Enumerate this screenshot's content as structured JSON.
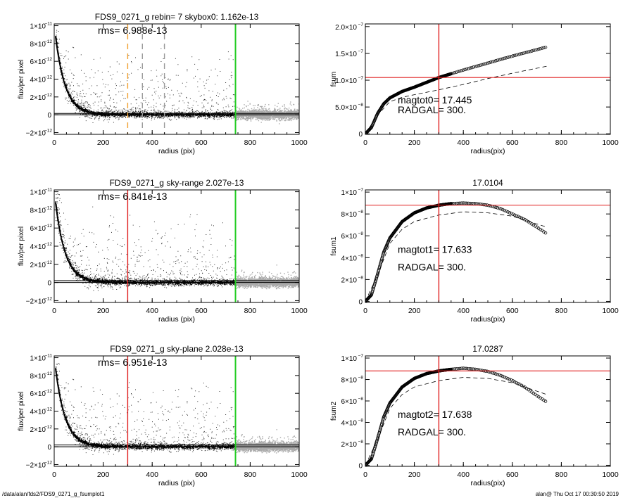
{
  "footer": {
    "path": "/data/alan/fds2/FDS9_0271_g_fsumplot1",
    "stamp": "alan@  Thu Oct 17 00:30:50 2019"
  },
  "chart_data": [
    {
      "type": "scatter",
      "title": "FDS9_0271_g rebin= 7    skybox0:  1.162e-13",
      "xlabel": "radius (pix)",
      "ylabel": "flux/per pixel",
      "xlim": [
        0,
        1000
      ],
      "ylim": [
        -2.2e-12,
        1.02e-11
      ],
      "x_ticks": [
        0,
        200,
        400,
        600,
        800,
        1000
      ],
      "y_ticks": [
        {
          "v": -2e-12,
          "m": "−2×10",
          "e": "−12"
        },
        {
          "v": 0,
          "m": "0",
          "e": ""
        },
        {
          "v": 2e-12,
          "m": "2×10",
          "e": "−12"
        },
        {
          "v": 4e-12,
          "m": "4×10",
          "e": "−12"
        },
        {
          "v": 6e-12,
          "m": "6×10",
          "e": "−12"
        },
        {
          "v": 8e-12,
          "m": "8×10",
          "e": "−12"
        },
        {
          "v": 1e-11,
          "m": "1×10",
          "e": "−11"
        }
      ],
      "annotations": [
        "rms= 6.988e-13"
      ],
      "vlines": [
        {
          "x": 300,
          "color": "#f0a030",
          "style": "dashed"
        },
        {
          "x": 360,
          "color": "#999999",
          "style": "dashed"
        },
        {
          "x": 450,
          "color": "#999999",
          "style": "dashed"
        },
        {
          "x": 740,
          "color": "#22cc22",
          "style": "solid"
        }
      ],
      "hlines": [
        {
          "y": 1.5e-13,
          "color": "#000000",
          "style": "solid"
        },
        {
          "y": 0,
          "color": "#000000",
          "style": "solid"
        }
      ],
      "profile": {
        "amplitude": 1e-11,
        "scale_pix": 40,
        "x_start": 5,
        "x_end": 740
      },
      "colors": {
        "points": "#000000",
        "sky": "#aaaaaa"
      }
    },
    {
      "type": "line",
      "title": "",
      "xlabel": "radius(pix)",
      "ylabel": "fsum",
      "xlim": [
        0,
        1000
      ],
      "ylim": [
        -1e-09,
        2.05e-07
      ],
      "x_ticks": [
        0,
        200,
        400,
        600,
        800,
        1000
      ],
      "y_ticks": [
        {
          "v": 0,
          "m": "0",
          "e": ""
        },
        {
          "v": 5e-08,
          "m": "5.0×10",
          "e": "−8"
        },
        {
          "v": 1e-07,
          "m": "1.0×10",
          "e": "−7"
        },
        {
          "v": 1.5e-07,
          "m": "1.5×10",
          "e": "−7"
        },
        {
          "v": 2e-07,
          "m": "2.0×10",
          "e": "−7"
        }
      ],
      "annotations": [
        "magtot0=  17.445",
        "RADGAL=    300."
      ],
      "vlines": [
        {
          "x": 300,
          "color": "#e02020",
          "style": "solid"
        }
      ],
      "hlines": [
        {
          "y": 1.05e-07,
          "color": "#e02020",
          "style": "solid"
        }
      ],
      "curve_points": [
        [
          0,
          0
        ],
        [
          25,
          1.2e-08
        ],
        [
          50,
          3.8e-08
        ],
        [
          75,
          5.6e-08
        ],
        [
          100,
          6.7e-08
        ],
        [
          150,
          7.9e-08
        ],
        [
          200,
          8.7e-08
        ],
        [
          250,
          9.6e-08
        ],
        [
          300,
          1.05e-07
        ],
        [
          400,
          1.19e-07
        ],
        [
          500,
          1.32e-07
        ],
        [
          600,
          1.45e-07
        ],
        [
          700,
          1.57e-07
        ],
        [
          740,
          1.62e-07
        ]
      ],
      "dashed_points": [
        [
          0,
          0
        ],
        [
          50,
          3.5e-08
        ],
        [
          100,
          6e-08
        ],
        [
          150,
          6.8e-08
        ],
        [
          200,
          7.3e-08
        ],
        [
          300,
          8.2e-08
        ],
        [
          400,
          9.2e-08
        ],
        [
          500,
          1.03e-07
        ],
        [
          600,
          1.13e-07
        ],
        [
          740,
          1.26e-07
        ]
      ]
    },
    {
      "type": "scatter",
      "title": "FDS9_0271_g sky-range  2.027e-13",
      "xlabel": "radius (pix)",
      "ylabel": "flux/per pixel",
      "xlim": [
        0,
        1000
      ],
      "ylim": [
        -2.2e-12,
        1.02e-11
      ],
      "x_ticks": [
        0,
        200,
        400,
        600,
        800,
        1000
      ],
      "y_ticks": [
        {
          "v": -2e-12,
          "m": "−2×10",
          "e": "−12"
        },
        {
          "v": 0,
          "m": "0",
          "e": ""
        },
        {
          "v": 2e-12,
          "m": "2×10",
          "e": "−12"
        },
        {
          "v": 4e-12,
          "m": "4×10",
          "e": "−12"
        },
        {
          "v": 6e-12,
          "m": "6×10",
          "e": "−12"
        },
        {
          "v": 8e-12,
          "m": "8×10",
          "e": "−12"
        },
        {
          "v": 1e-11,
          "m": "1×10",
          "e": "−11"
        }
      ],
      "annotations": [
        "rms= 6.841e-13"
      ],
      "vlines": [
        {
          "x": 300,
          "color": "#e02020",
          "style": "solid"
        },
        {
          "x": 740,
          "color": "#22cc22",
          "style": "solid"
        }
      ],
      "hlines": [
        {
          "y": 2e-13,
          "color": "#000000",
          "style": "solid"
        },
        {
          "y": 0,
          "color": "#000000",
          "style": "solid"
        }
      ],
      "profile": {
        "amplitude": 1e-11,
        "scale_pix": 40,
        "x_start": 5,
        "x_end": 740
      },
      "colors": {
        "points": "#000000",
        "sky": "#aaaaaa"
      }
    },
    {
      "type": "line",
      "title": "17.0104",
      "xlabel": "radius(pix)",
      "ylabel": "fsum1",
      "xlim": [
        0,
        1000
      ],
      "ylim": [
        -1e-09,
        1.02e-07
      ],
      "x_ticks": [
        0,
        200,
        400,
        600,
        800,
        1000
      ],
      "y_ticks": [
        {
          "v": 0,
          "m": "0",
          "e": ""
        },
        {
          "v": 2e-08,
          "m": "2×10",
          "e": "−8"
        },
        {
          "v": 4e-08,
          "m": "4×10",
          "e": "−8"
        },
        {
          "v": 6e-08,
          "m": "6×10",
          "e": "−8"
        },
        {
          "v": 8e-08,
          "m": "8×10",
          "e": "−8"
        },
        {
          "v": 1e-07,
          "m": "1×10",
          "e": "−7"
        }
      ],
      "annotations": [
        "magtot1=  17.633",
        "RADGAL=    300."
      ],
      "vlines": [
        {
          "x": 300,
          "color": "#e02020",
          "style": "solid"
        }
      ],
      "hlines": [
        {
          "y": 8.8e-08,
          "color": "#e02020",
          "style": "solid"
        }
      ],
      "curve_points": [
        [
          0,
          0
        ],
        [
          25,
          6e-09
        ],
        [
          50,
          2.5e-08
        ],
        [
          75,
          4.5e-08
        ],
        [
          100,
          5.8e-08
        ],
        [
          150,
          7.3e-08
        ],
        [
          200,
          8.1e-08
        ],
        [
          250,
          8.55e-08
        ],
        [
          300,
          8.8e-08
        ],
        [
          350,
          8.95e-08
        ],
        [
          400,
          9e-08
        ],
        [
          450,
          8.95e-08
        ],
        [
          500,
          8.8e-08
        ],
        [
          550,
          8.5e-08
        ],
        [
          600,
          8e-08
        ],
        [
          650,
          7.5e-08
        ],
        [
          700,
          6.8e-08
        ],
        [
          740,
          6.2e-08
        ]
      ],
      "dashed_points": [
        [
          0,
          0
        ],
        [
          50,
          2.4e-08
        ],
        [
          100,
          5.3e-08
        ],
        [
          150,
          6.6e-08
        ],
        [
          200,
          7.3e-08
        ],
        [
          300,
          7.9e-08
        ],
        [
          400,
          8.2e-08
        ],
        [
          500,
          8.1e-08
        ],
        [
          600,
          7.8e-08
        ],
        [
          740,
          6.8e-08
        ]
      ]
    },
    {
      "type": "scatter",
      "title": "FDS9_0271_g sky-plane  2.028e-13",
      "xlabel": "radius (pix)",
      "ylabel": "flux/per pixel",
      "xlim": [
        0,
        1000
      ],
      "ylim": [
        -2.2e-12,
        1.02e-11
      ],
      "x_ticks": [
        0,
        200,
        400,
        600,
        800,
        1000
      ],
      "y_ticks": [
        {
          "v": -2e-12,
          "m": "−2×10",
          "e": "−12"
        },
        {
          "v": 0,
          "m": "0",
          "e": ""
        },
        {
          "v": 2e-12,
          "m": "2×10",
          "e": "−12"
        },
        {
          "v": 4e-12,
          "m": "4×10",
          "e": "−12"
        },
        {
          "v": 6e-12,
          "m": "6×10",
          "e": "−12"
        },
        {
          "v": 8e-12,
          "m": "8×10",
          "e": "−12"
        },
        {
          "v": 1e-11,
          "m": "1×10",
          "e": "−11"
        }
      ],
      "annotations": [
        "rms= 6.951e-13"
      ],
      "vlines": [
        {
          "x": 300,
          "color": "#e02020",
          "style": "solid"
        },
        {
          "x": 740,
          "color": "#22cc22",
          "style": "solid"
        }
      ],
      "hlines": [
        {
          "y": 2e-13,
          "color": "#000000",
          "style": "solid"
        },
        {
          "y": 0,
          "color": "#000000",
          "style": "solid"
        }
      ],
      "profile": {
        "amplitude": 1e-11,
        "scale_pix": 40,
        "x_start": 5,
        "x_end": 740
      },
      "colors": {
        "points": "#000000",
        "sky": "#aaaaaa"
      }
    },
    {
      "type": "line",
      "title": "17.0287",
      "xlabel": "radius(pix)",
      "ylabel": "fsum2",
      "xlim": [
        0,
        1000
      ],
      "ylim": [
        -1e-09,
        1.02e-07
      ],
      "x_ticks": [
        0,
        200,
        400,
        600,
        800,
        1000
      ],
      "y_ticks": [
        {
          "v": 0,
          "m": "0",
          "e": ""
        },
        {
          "v": 2e-08,
          "m": "2×10",
          "e": "−8"
        },
        {
          "v": 4e-08,
          "m": "4×10",
          "e": "−8"
        },
        {
          "v": 6e-08,
          "m": "6×10",
          "e": "−8"
        },
        {
          "v": 8e-08,
          "m": "8×10",
          "e": "−8"
        },
        {
          "v": 1e-07,
          "m": "1×10",
          "e": "−7"
        }
      ],
      "annotations": [
        "magtot2=  17.638",
        "RADGAL=    300."
      ],
      "vlines": [
        {
          "x": 300,
          "color": "#e02020",
          "style": "solid"
        }
      ],
      "hlines": [
        {
          "y": 8.8e-08,
          "color": "#e02020",
          "style": "solid"
        }
      ],
      "curve_points": [
        [
          0,
          0
        ],
        [
          25,
          6e-09
        ],
        [
          50,
          2.5e-08
        ],
        [
          75,
          4.5e-08
        ],
        [
          100,
          5.8e-08
        ],
        [
          150,
          7.3e-08
        ],
        [
          200,
          8.1e-08
        ],
        [
          250,
          8.55e-08
        ],
        [
          300,
          8.8e-08
        ],
        [
          350,
          8.95e-08
        ],
        [
          400,
          9.05e-08
        ],
        [
          450,
          8.95e-08
        ],
        [
          500,
          8.75e-08
        ],
        [
          550,
          8.4e-08
        ],
        [
          600,
          7.9e-08
        ],
        [
          650,
          7.3e-08
        ],
        [
          700,
          6.5e-08
        ],
        [
          740,
          5.9e-08
        ]
      ],
      "dashed_points": [
        [
          0,
          0
        ],
        [
          50,
          2.4e-08
        ],
        [
          100,
          5.3e-08
        ],
        [
          150,
          6.6e-08
        ],
        [
          200,
          7.3e-08
        ],
        [
          300,
          7.9e-08
        ],
        [
          400,
          8.2e-08
        ],
        [
          500,
          8.1e-08
        ],
        [
          600,
          7.7e-08
        ],
        [
          740,
          6.6e-08
        ]
      ]
    }
  ]
}
